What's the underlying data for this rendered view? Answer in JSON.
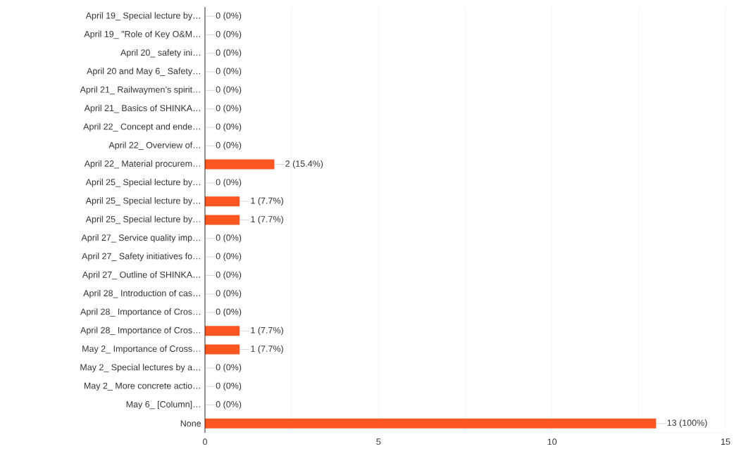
{
  "chart_data": {
    "type": "bar",
    "orientation": "horizontal",
    "categories": [
      "April 19_ Special lecture by…",
      "April 19_ \"Role of Key O&M…",
      "April 20_ safety ini…",
      "April 20 and May 6_ Safety…",
      "April 21_ Railwaymen’s spirit…",
      "April 21_ Basics of SHINKA…",
      "April 22_ Concept and ende…",
      "April 22_ Overview of…",
      "April 22_ Material procurem…",
      "April 25_ Special lecture by…",
      "April 25_ Special lecture by…",
      "April 25_ Special lecture by…",
      "April 27_ Service quality imp…",
      "April 27_ Safety initiatives fo…",
      "April 27_ Outline of SHINKA…",
      "April 28_ Introduction of cas…",
      "April 28_ Importance of Cros…",
      "April 28_ Importance of Cros…",
      "May 2_ Importance of Cross…",
      "May 2_ Special lectures by a…",
      "May 2_ More concrete actio…",
      "May 6_ [Column]…",
      "None"
    ],
    "values": [
      0,
      0,
      0,
      0,
      0,
      0,
      0,
      0,
      2,
      0,
      1,
      1,
      0,
      0,
      0,
      0,
      0,
      1,
      1,
      0,
      0,
      0,
      13
    ],
    "value_labels": [
      "0 (0%)",
      "0 (0%)",
      "0 (0%)",
      "0 (0%)",
      "0 (0%)",
      "0 (0%)",
      "0 (0%)",
      "0 (0%)",
      "2 (15.4%)",
      "0 (0%)",
      "1 (7.7%)",
      "1 (7.7%)",
      "0 (0%)",
      "0 (0%)",
      "0 (0%)",
      "0 (0%)",
      "0 (0%)",
      "1 (7.7%)",
      "1 (7.7%)",
      "0 (0%)",
      "0 (0%)",
      "0 (0%)",
      "13 (100%)"
    ],
    "color": "#ff5722",
    "xlim": [
      0,
      15
    ],
    "xticks": [
      0,
      {
        "value": 2.5,
        "label": null
      },
      5,
      {
        "value": 7.5,
        "label": null
      },
      10,
      {
        "value": 12.5,
        "label": null
      },
      15
    ],
    "grid": "x"
  }
}
